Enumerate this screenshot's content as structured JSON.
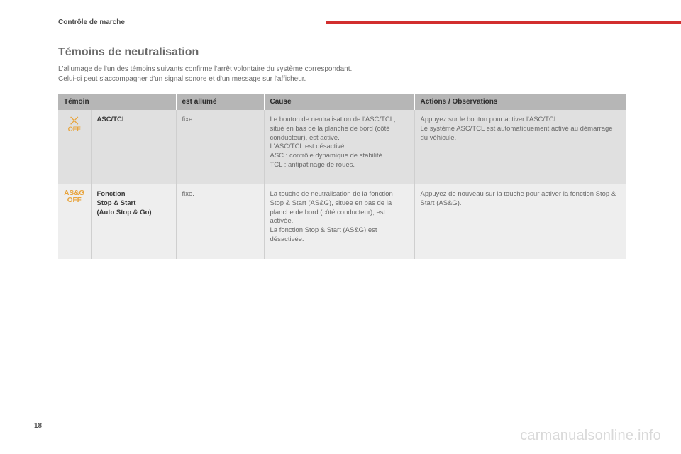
{
  "page": {
    "section": "Contrôle de marche",
    "heading": "Témoins de neutralisation",
    "intro_line1": "L'allumage de l'un des témoins suivants confirme l'arrêt volontaire du système correspondant.",
    "intro_line2": "Celui-ci peut s'accompagner d'un signal sonore et d'un message sur l'afficheur.",
    "number": "18",
    "watermark": "carmanualsonline.info"
  },
  "table": {
    "headers": {
      "temoin": "Témoin",
      "state": "est allumé",
      "cause": "Cause",
      "actions": "Actions / Observations"
    },
    "rows": [
      {
        "icon": {
          "type": "asc",
          "line1": "⤬",
          "line2": "OFF",
          "color": "#e8a33a"
        },
        "name": "ASC/TCL",
        "state": "fixe.",
        "cause": "Le bouton de neutralisation de l'ASC/TCL, situé en bas de la planche de bord (côté conducteur), est activé.\nL'ASC/TCL est désactivé.\nASC : contrôle dynamique de stabilité.\nTCL : antipatinage de roues.",
        "action": "Appuyez sur le bouton pour activer l'ASC/TCL.\nLe système ASC/TCL est automatiquement activé au démarrage du véhicule."
      },
      {
        "icon": {
          "type": "asg",
          "line1": "AS&G",
          "line2": "OFF",
          "color": "#e8a33a"
        },
        "name": "Fonction\nStop & Start\n(Auto Stop & Go)",
        "state": "fixe.",
        "cause": "La touche de neutralisation de la fonction Stop & Start (AS&G), située en bas de la planche de bord (côté conducteur), est activée.\nLa fonction Stop & Start (AS&G) est désactivée.",
        "action": "Appuyez de nouveau sur la touche pour activer la fonction Stop & Start (AS&G)."
      }
    ]
  }
}
